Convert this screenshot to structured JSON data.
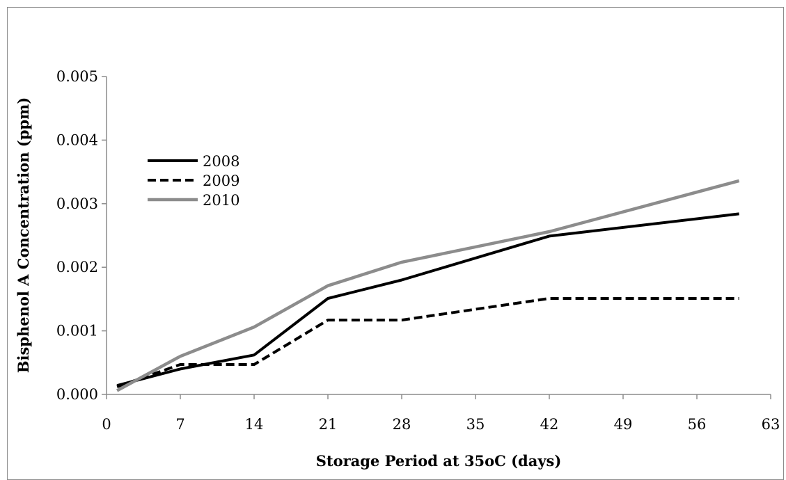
{
  "chart_data": {
    "type": "line",
    "title": "",
    "xlabel": "Storage Period at 35oC (days)",
    "ylabel": "Bisphenol A Concentration  (ppm)",
    "xlim": [
      0,
      63
    ],
    "ylim": [
      0,
      0.005
    ],
    "x_ticks": [
      "0",
      "7",
      "14",
      "21",
      "28",
      "35",
      "42",
      "49",
      "56",
      "63"
    ],
    "y_ticks": [
      "0.000",
      "0.001",
      "0.002",
      "0.003",
      "0.004",
      "0.005"
    ],
    "x_tick_values": [
      0,
      7,
      14,
      21,
      28,
      35,
      42,
      49,
      56,
      63
    ],
    "y_tick_values": [
      0,
      0.001,
      0.002,
      0.003,
      0.004,
      0.005
    ],
    "grid": false,
    "legend_position": "upper-left",
    "series": [
      {
        "name": "2008",
        "style": "solid",
        "color": "#000000",
        "x": [
          1,
          7,
          14,
          21,
          28,
          42,
          60
        ],
        "y": [
          0.00014,
          0.0004,
          0.00062,
          0.00151,
          0.0018,
          0.00249,
          0.00284
        ]
      },
      {
        "name": "2009",
        "style": "dashed",
        "color": "#000000",
        "x": [
          1,
          7,
          14,
          21,
          28,
          42,
          60
        ],
        "y": [
          0.00012,
          0.00047,
          0.00047,
          0.00117,
          0.00117,
          0.00151,
          0.00151
        ]
      },
      {
        "name": "2010",
        "style": "solid",
        "color": "#8c8c8c",
        "x": [
          1,
          7,
          14,
          21,
          28,
          42,
          60
        ],
        "y": [
          6e-05,
          0.0006,
          0.00106,
          0.00171,
          0.00208,
          0.00256,
          0.00336
        ]
      }
    ]
  }
}
